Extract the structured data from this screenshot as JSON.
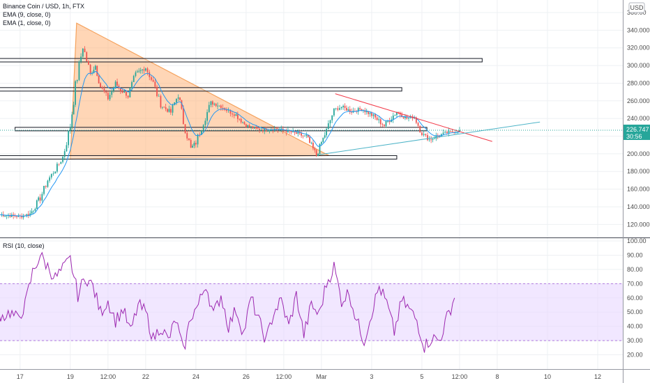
{
  "chart_data": [
    {
      "type": "candlestick",
      "title": "Binance Coin / USD, 1h, FTX",
      "indicators": [
        "EMA (9, close, 0)",
        "EMA (1, close, 0)"
      ],
      "currency": "USD",
      "ylim": [
        110,
        360
      ],
      "y_ticks": [
        "360.00",
        "340.000",
        "320.000",
        "300.000",
        "280.000",
        "260.000",
        "240.000",
        "220.000",
        "200.000",
        "180.000",
        "160.000",
        "140.000",
        "120.000"
      ],
      "y_tick_values": [
        360,
        340,
        320,
        300,
        280,
        260,
        240,
        220,
        200,
        180,
        160,
        140,
        120
      ],
      "last_price": "226.747",
      "countdown": "30:56",
      "x_ticks": [
        "17",
        "19",
        "12:00",
        "22",
        "24",
        "26",
        "12:00",
        "Mar",
        "3",
        "5",
        "12:00",
        "8",
        "10",
        "12"
      ],
      "x_tick_days": [
        17,
        19,
        20.5,
        22,
        24,
        26,
        27.5,
        29,
        31,
        33,
        34.5,
        36,
        38,
        40
      ],
      "price_series": {
        "days": [
          16.2,
          16.6,
          17.0,
          17.4,
          17.8,
          18.1,
          18.4,
          18.7,
          19.0,
          19.2,
          19.5,
          19.8,
          20.0,
          20.2,
          20.5,
          20.8,
          21.0,
          21.3,
          21.6,
          22.0,
          22.3,
          22.6,
          23.0,
          23.3,
          23.5,
          23.8,
          24.0,
          24.3,
          24.6,
          25.0,
          25.3,
          25.6,
          26.0,
          26.4,
          26.8,
          27.2,
          27.6,
          28.0,
          28.4,
          28.8,
          29.0,
          29.2,
          29.5,
          29.8,
          30.2,
          30.6,
          31.0,
          31.5,
          32.0,
          32.4,
          32.7,
          33.0,
          33.3,
          33.7,
          34.0,
          34.5
        ],
        "close": [
          131,
          130,
          129,
          132,
          150,
          170,
          182,
          196,
          232,
          276,
          322,
          290,
          300,
          276,
          263,
          280,
          272,
          266,
          290,
          298,
          280,
          255,
          247,
          268,
          236,
          206,
          213,
          236,
          258,
          254,
          248,
          244,
          232,
          228,
          227,
          228,
          226,
          223,
          219,
          198,
          213,
          226,
          250,
          253,
          248,
          251,
          244,
          232,
          248,
          240,
          242,
          223,
          216,
          221,
          224,
          226.7
        ]
      },
      "horizontal_levels": [
        {
          "price": 306,
          "day_from": 16.0,
          "day_to": 35.4
        },
        {
          "price": 273,
          "day_from": 16.0,
          "day_to": 32.2
        },
        {
          "price": 228,
          "day_from": 16.8,
          "day_to": 33.2
        },
        {
          "price": 196,
          "day_from": 16.0,
          "day_to": 32.0
        }
      ],
      "triangle": [
        {
          "day": 19.25,
          "price": 348
        },
        {
          "day": 19.0,
          "price": 194
        },
        {
          "day": 29.3,
          "price": 198
        }
      ],
      "trendline_down": [
        {
          "day": 29.55,
          "price": 268
        },
        {
          "day": 35.8,
          "price": 214
        }
      ],
      "trendline_up": [
        {
          "day": 28.9,
          "price": 199
        },
        {
          "day": 37.7,
          "price": 236
        }
      ]
    },
    {
      "type": "line",
      "title": "RSI (10, close)",
      "ylim": [
        10,
        100
      ],
      "y_ticks": [
        "100.00",
        "90.00",
        "80.00",
        "70.00",
        "60.00",
        "50.00",
        "40.00",
        "30.00",
        "20.00"
      ],
      "y_tick_values": [
        100,
        90,
        80,
        70,
        60,
        50,
        40,
        30,
        20
      ],
      "band": [
        30,
        70
      ],
      "series": {
        "days": [
          16.0,
          16.3,
          16.6,
          16.9,
          17.2,
          17.5,
          17.8,
          18.1,
          18.4,
          18.7,
          19.0,
          19.3,
          19.6,
          19.9,
          20.2,
          20.5,
          20.8,
          21.1,
          21.4,
          21.7,
          22.0,
          22.3,
          22.6,
          22.9,
          23.2,
          23.5,
          23.8,
          24.1,
          24.4,
          24.7,
          25.0,
          25.3,
          25.6,
          25.9,
          26.2,
          26.5,
          26.8,
          27.1,
          27.4,
          27.7,
          28.0,
          28.3,
          28.6,
          28.9,
          29.2,
          29.5,
          29.8,
          30.1,
          30.4,
          30.7,
          31.0,
          31.3,
          31.6,
          31.9,
          32.2,
          32.5,
          32.8,
          33.1,
          33.4,
          33.7,
          34.0,
          34.3
        ],
        "values": [
          52,
          47,
          50,
          45,
          55,
          78,
          90,
          82,
          74,
          80,
          87,
          62,
          75,
          68,
          50,
          58,
          44,
          52,
          36,
          55,
          50,
          31,
          40,
          30,
          45,
          22,
          47,
          55,
          70,
          48,
          62,
          40,
          52,
          35,
          60,
          44,
          30,
          50,
          58,
          40,
          62,
          34,
          55,
          48,
          70,
          82,
          58,
          64,
          44,
          30,
          50,
          68,
          56,
          36,
          58,
          52,
          44,
          26,
          32,
          30,
          46,
          60
        ]
      }
    }
  ]
}
